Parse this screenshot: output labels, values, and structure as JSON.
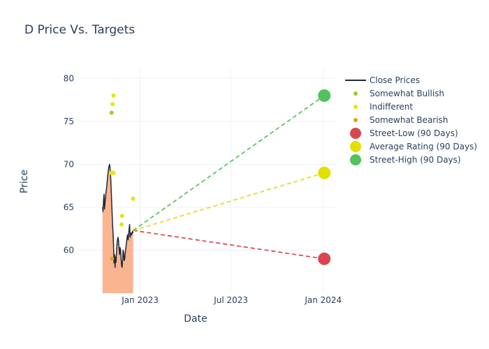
{
  "chart_data": {
    "type": "scatter",
    "title": "D Price Vs. Targets",
    "xlabel": "Date",
    "ylabel": "Price",
    "x_range": [
      "2022-09-01",
      "2024-01-25"
    ],
    "y_range": [
      55,
      81
    ],
    "x_ticks": [
      {
        "date": "2023-01-01",
        "label": "Jan 2023"
      },
      {
        "date": "2023-07-01",
        "label": "Jul 2023"
      },
      {
        "date": "2024-01-01",
        "label": "Jan 2024"
      }
    ],
    "y_ticks": [
      60,
      65,
      70,
      75,
      80
    ],
    "grid": true,
    "legend_position": "top-right",
    "close_prices": {
      "name": "Close Prices",
      "color": "#1f2a37",
      "fill_color": "#f9a77c",
      "points": [
        [
          "2022-10-18",
          65.0
        ],
        [
          "2022-10-19",
          64.5
        ],
        [
          "2022-10-20",
          65.8
        ],
        [
          "2022-10-21",
          66.5
        ],
        [
          "2022-10-22",
          64.8
        ],
        [
          "2022-10-23",
          65.5
        ],
        [
          "2022-10-24",
          66.2
        ],
        [
          "2022-10-25",
          66.8
        ],
        [
          "2022-10-26",
          67.2
        ],
        [
          "2022-10-27",
          67.8
        ],
        [
          "2022-10-28",
          68.5
        ],
        [
          "2022-10-29",
          69.0
        ],
        [
          "2022-10-30",
          69.5
        ],
        [
          "2022-10-31",
          69.8
        ],
        [
          "2022-11-01",
          70.0
        ],
        [
          "2022-11-02",
          69.6
        ],
        [
          "2022-11-03",
          68.8
        ],
        [
          "2022-11-04",
          67.5
        ],
        [
          "2022-11-05",
          66.0
        ],
        [
          "2022-11-06",
          64.5
        ],
        [
          "2022-11-07",
          63.0
        ],
        [
          "2022-11-08",
          62.0
        ],
        [
          "2022-11-09",
          60.5
        ],
        [
          "2022-11-10",
          58.5
        ],
        [
          "2022-11-11",
          59.5
        ],
        [
          "2022-11-12",
          58.0
        ],
        [
          "2022-11-13",
          59.2
        ],
        [
          "2022-11-14",
          58.6
        ],
        [
          "2022-11-15",
          60.0
        ],
        [
          "2022-11-16",
          60.8
        ],
        [
          "2022-11-17",
          61.3
        ],
        [
          "2022-11-18",
          61.5
        ],
        [
          "2022-11-19",
          61.0
        ],
        [
          "2022-11-20",
          60.2
        ],
        [
          "2022-11-21",
          59.5
        ],
        [
          "2022-11-22",
          60.3
        ],
        [
          "2022-11-23",
          60.1
        ],
        [
          "2022-11-24",
          59.0
        ],
        [
          "2022-11-25",
          58.2
        ],
        [
          "2022-11-26",
          58.0
        ],
        [
          "2022-11-27",
          58.8
        ],
        [
          "2022-11-28",
          60.0
        ],
        [
          "2022-11-29",
          59.8
        ],
        [
          "2022-11-30",
          58.8
        ],
        [
          "2022-12-01",
          58.9
        ],
        [
          "2022-12-02",
          59.5
        ],
        [
          "2022-12-03",
          60.0
        ],
        [
          "2022-12-04",
          60.5
        ],
        [
          "2022-12-05",
          61.0
        ],
        [
          "2022-12-06",
          61.5
        ],
        [
          "2022-12-07",
          61.8
        ],
        [
          "2022-12-08",
          61.2
        ],
        [
          "2022-12-09",
          61.8
        ],
        [
          "2022-12-10",
          62.5
        ],
        [
          "2022-12-11",
          63.0
        ],
        [
          "2022-12-12",
          61.5
        ],
        [
          "2022-12-13",
          61.8
        ],
        [
          "2022-12-14",
          62.0
        ],
        [
          "2022-12-15",
          61.8
        ],
        [
          "2022-12-16",
          62.0
        ],
        [
          "2022-12-17",
          62.2
        ],
        [
          "2022-12-18",
          62.0
        ]
      ]
    },
    "rating_points": [
      {
        "series": "Somewhat Bullish",
        "date": "2022-11-05",
        "value": 76
      },
      {
        "series": "Indifferent",
        "date": "2022-11-07",
        "value": 77
      },
      {
        "series": "Indifferent",
        "date": "2022-11-09",
        "value": 78
      },
      {
        "series": "Indifferent",
        "date": "2022-11-04",
        "value": 69
      },
      {
        "series": "Indifferent",
        "date": "2022-11-06",
        "value": 69
      },
      {
        "series": "Indifferent",
        "date": "2022-11-09",
        "value": 69
      },
      {
        "series": "Somewhat Bearish",
        "date": "2022-11-06",
        "value": 59
      },
      {
        "series": "Indifferent",
        "date": "2022-11-26",
        "value": 64
      },
      {
        "series": "Indifferent",
        "date": "2022-11-25",
        "value": 63
      },
      {
        "series": "Indifferent",
        "date": "2022-12-18",
        "value": 66
      }
    ],
    "target_lines": [
      {
        "series": "Street-Low (90 Days)",
        "from": [
          "2022-12-18",
          62.3
        ],
        "to": [
          "2024-01-03",
          59
        ]
      },
      {
        "series": "Average Rating (90 Days)",
        "from": [
          "2022-12-18",
          62.3
        ],
        "to": [
          "2024-01-03",
          69
        ]
      },
      {
        "series": "Street-High (90 Days)",
        "from": [
          "2022-12-18",
          62.3
        ],
        "to": [
          "2024-01-03",
          78
        ]
      }
    ],
    "target_points": [
      {
        "series": "Street-Low (90 Days)",
        "date": "2024-01-03",
        "value": 59
      },
      {
        "series": "Average Rating (90 Days)",
        "date": "2024-01-03",
        "value": 69
      },
      {
        "series": "Street-High (90 Days)",
        "date": "2024-01-03",
        "value": 78
      }
    ],
    "legend": [
      {
        "name": "Close Prices",
        "symbol": "line",
        "color": "#1f2a37"
      },
      {
        "name": "Somewhat Bullish",
        "symbol": "small-dot",
        "color": "#9acd32"
      },
      {
        "name": "Indifferent",
        "symbol": "small-dot",
        "color": "#e6e600"
      },
      {
        "name": "Somewhat Bearish",
        "symbol": "small-dot",
        "color": "#daa520"
      },
      {
        "name": "Street-Low (90 Days)",
        "symbol": "big-dot",
        "color": "#d9464e"
      },
      {
        "name": "Average Rating (90 Days)",
        "symbol": "big-dot",
        "color": "#e3e000"
      },
      {
        "name": "Street-High (90 Days)",
        "symbol": "big-dot",
        "color": "#4ec45a"
      }
    ]
  }
}
